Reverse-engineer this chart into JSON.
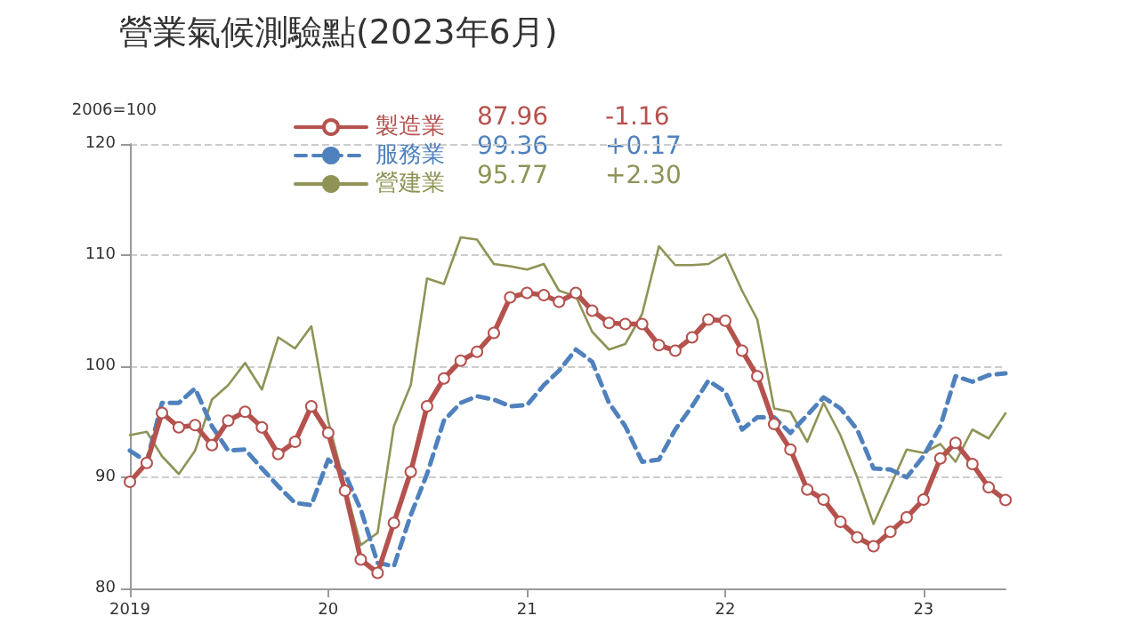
{
  "chart_data": {
    "type": "line",
    "title": "營業氣候測驗點(2023年6月)",
    "ylabel": "2006=100",
    "x": [
      "2019-01",
      "2019-02",
      "2019-03",
      "2019-04",
      "2019-05",
      "2019-06",
      "2019-07",
      "2019-08",
      "2019-09",
      "2019-10",
      "2019-11",
      "2019-12",
      "2020-01",
      "2020-02",
      "2020-03",
      "2020-04",
      "2020-05",
      "2020-06",
      "2020-07",
      "2020-08",
      "2020-09",
      "2020-10",
      "2020-11",
      "2020-12",
      "2021-01",
      "2021-02",
      "2021-03",
      "2021-04",
      "2021-05",
      "2021-06",
      "2021-07",
      "2021-08",
      "2021-09",
      "2021-10",
      "2021-11",
      "2021-12",
      "2022-01",
      "2022-02",
      "2022-03",
      "2022-04",
      "2022-05",
      "2022-06",
      "2022-07",
      "2022-08",
      "2022-09",
      "2022-10",
      "2022-11",
      "2022-12",
      "2023-01",
      "2023-02",
      "2023-03",
      "2023-04",
      "2023-05",
      "2023-06"
    ],
    "series": [
      {
        "name": "製造業",
        "color": "#b5524e",
        "marker": "circle",
        "line_style": "solid",
        "values": [
          89.6,
          91.3,
          95.8,
          94.5,
          94.7,
          92.9,
          95.1,
          95.9,
          94.5,
          92.1,
          93.2,
          96.4,
          94.0,
          88.8,
          82.6,
          81.4,
          85.9,
          90.5,
          96.4,
          98.9,
          100.5,
          101.3,
          103.0,
          106.2,
          106.6,
          106.4,
          105.8,
          106.6,
          105.0,
          103.9,
          103.8,
          103.8,
          101.9,
          101.4,
          102.6,
          104.2,
          104.1,
          101.4,
          99.1,
          94.8,
          92.5,
          88.9,
          88.0,
          86.0,
          84.6,
          83.8,
          85.1,
          86.4,
          88.0,
          91.7,
          93.1,
          91.2,
          89.1,
          87.96
        ]
      },
      {
        "name": "服務業",
        "color": "#4f81bd",
        "marker": "none",
        "line_style": "dashed",
        "values": [
          92.4,
          91.4,
          96.7,
          96.7,
          98.0,
          94.6,
          92.4,
          92.5,
          90.8,
          89.2,
          87.7,
          87.5,
          91.6,
          90.3,
          87.1,
          82.3,
          82.0,
          86.6,
          90.3,
          95.1,
          96.7,
          97.3,
          97.0,
          96.4,
          96.5,
          98.3,
          99.6,
          101.5,
          100.4,
          96.7,
          94.6,
          91.4,
          91.6,
          94.3,
          96.4,
          98.7,
          97.7,
          94.3,
          95.4,
          95.4,
          94.0,
          95.6,
          97.2,
          96.2,
          94.3,
          90.8,
          90.7,
          90.0,
          91.9,
          94.6,
          99.1,
          98.6,
          99.2,
          99.36
        ]
      },
      {
        "name": "營建業",
        "color": "#8f9356",
        "marker": "none",
        "line_style": "solid",
        "values": [
          93.8,
          94.1,
          91.9,
          90.3,
          92.4,
          97.0,
          98.3,
          100.3,
          97.9,
          102.6,
          101.6,
          103.6,
          95.1,
          89.2,
          83.9,
          85.0,
          94.6,
          98.3,
          107.9,
          107.4,
          111.6,
          111.4,
          109.2,
          109.0,
          108.7,
          109.2,
          106.8,
          106.3,
          103.1,
          101.5,
          102.0,
          104.7,
          110.8,
          109.1,
          109.1,
          109.2,
          110.1,
          106.8,
          104.2,
          96.2,
          95.9,
          93.2,
          96.7,
          93.8,
          90.0,
          85.8,
          89.2,
          92.5,
          92.2,
          93.0,
          91.4,
          94.3,
          93.5,
          95.77
        ]
      }
    ],
    "annotations": [
      "87.96",
      "-1.16",
      "99.36",
      "+0.17",
      "95.77",
      "+2.30"
    ],
    "xlim": [
      "2019-01",
      "2023-06"
    ],
    "xticks": [
      {
        "value": "2019-01",
        "label": "2019"
      },
      {
        "value": "2020-01",
        "label": "20"
      },
      {
        "value": "2021-01",
        "label": "21"
      },
      {
        "value": "2022-01",
        "label": "22"
      },
      {
        "value": "2023-01",
        "label": "23"
      }
    ],
    "ylim": [
      80,
      120
    ],
    "yticks": [
      80,
      90,
      100,
      110,
      120
    ],
    "grid": "y",
    "legend": "top"
  }
}
